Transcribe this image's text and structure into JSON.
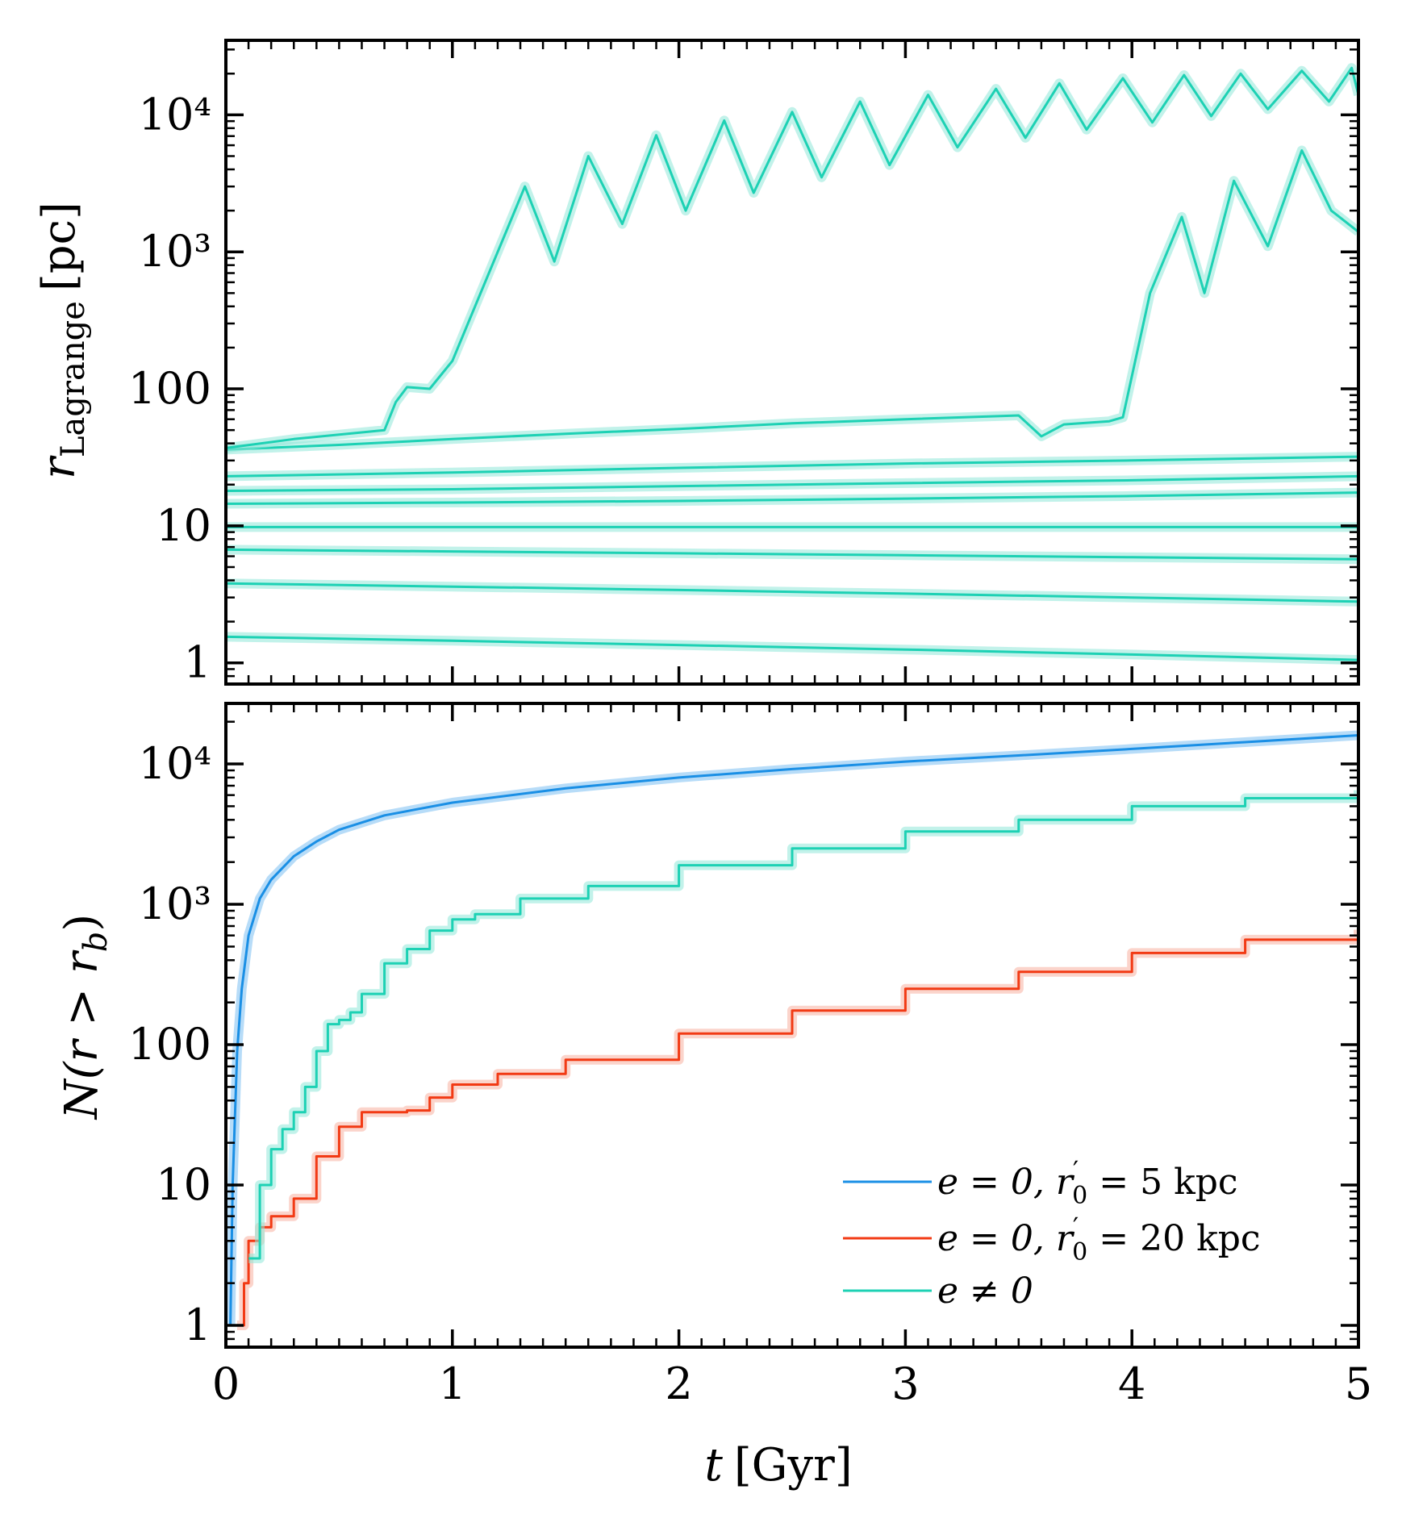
{
  "colors": {
    "cyan": "#1dd1b4",
    "cyan_light": "#8fe8d8",
    "blue": "#1a8fe5",
    "blue_light": "#7cc0f3",
    "red": "#f23a14",
    "red_light": "#f8b0a0"
  },
  "chart_data": [
    {
      "type": "line",
      "panel": "top",
      "xlabel": "",
      "ylabel": "r_Lagrange [pc]",
      "ylabel_main": "r",
      "ylabel_sub": "Lagrange",
      "ylabel_unit": "[pc]",
      "yscale": "log",
      "xlim": [
        0,
        5
      ],
      "ylim": [
        0.7,
        35000
      ],
      "yticks": [
        1,
        10,
        100,
        1000,
        10000
      ],
      "ytick_labels": [
        "1",
        "10",
        "100",
        "10³",
        "10⁴"
      ],
      "grid": false,
      "series": [
        {
          "x": [
            0,
            1,
            2,
            3,
            4,
            5
          ],
          "y": [
            1.55,
            1.45,
            1.35,
            1.25,
            1.15,
            1.05
          ]
        },
        {
          "x": [
            0,
            1,
            2,
            3,
            4,
            5
          ],
          "y": [
            3.8,
            3.6,
            3.4,
            3.2,
            3.0,
            2.8
          ]
        },
        {
          "x": [
            0,
            1,
            2,
            3,
            4,
            5
          ],
          "y": [
            6.7,
            6.5,
            6.3,
            6.1,
            5.9,
            5.7
          ]
        },
        {
          "x": [
            0,
            1,
            2,
            3,
            4,
            5
          ],
          "y": [
            9.8,
            9.8,
            9.8,
            9.8,
            9.8,
            9.8
          ]
        },
        {
          "x": [
            0,
            1,
            2,
            3,
            4,
            5
          ],
          "y": [
            14.5,
            14.8,
            15.2,
            15.8,
            16.5,
            17.5
          ]
        },
        {
          "x": [
            0,
            1,
            2,
            3,
            4,
            5
          ],
          "y": [
            18,
            18.5,
            19.5,
            20.5,
            21.5,
            23
          ]
        },
        {
          "x": [
            0,
            1,
            2,
            3,
            4,
            5
          ],
          "y": [
            23,
            24.5,
            26.5,
            28.5,
            30,
            32
          ]
        },
        {
          "x": [
            0,
            0.5,
            1,
            1.5,
            2,
            2.5,
            3,
            3.5,
            3.6,
            3.7,
            3.9,
            3.96,
            4.08,
            4.22,
            4.32,
            4.45,
            4.6,
            4.75,
            4.88,
            5.0
          ],
          "y": [
            36,
            39,
            43,
            47,
            51,
            56,
            60,
            64,
            45,
            55,
            58,
            62,
            500,
            1800,
            500,
            3300,
            1100,
            5500,
            2000,
            1400
          ]
        },
        {
          "x": [
            0,
            0.3,
            0.7,
            0.75,
            0.8,
            0.9,
            1.0,
            1.1,
            1.32,
            1.45,
            1.6,
            1.75,
            1.9,
            2.03,
            2.2,
            2.33,
            2.5,
            2.63,
            2.8,
            2.93,
            3.1,
            3.23,
            3.4,
            3.53,
            3.68,
            3.8,
            3.96,
            4.09,
            4.23,
            4.35,
            4.48,
            4.6,
            4.75,
            4.87,
            4.97,
            5.0
          ],
          "y": [
            37,
            43,
            50,
            80,
            103,
            100,
            160,
            400,
            3000,
            850,
            5000,
            1600,
            7100,
            2000,
            9100,
            2700,
            10500,
            3500,
            12500,
            4300,
            14000,
            5800,
            15500,
            6800,
            17000,
            7800,
            18500,
            8800,
            19500,
            9800,
            20000,
            11000,
            21000,
            12500,
            22000,
            14000
          ]
        }
      ]
    },
    {
      "type": "line",
      "panel": "bottom",
      "xlabel": "t [Gyr]",
      "xlabel_main": "t",
      "xlabel_unit": "[Gyr]",
      "ylabel": "N(r > r_b)",
      "ylabel_main": "N(r > r",
      "ylabel_sub": "b",
      "ylabel_close": ")",
      "yscale": "log",
      "xlim": [
        0,
        5
      ],
      "ylim": [
        0.7,
        27000
      ],
      "xticks": [
        0,
        1,
        2,
        3,
        4,
        5
      ],
      "xtick_labels": [
        "0",
        "1",
        "2",
        "3",
        "4",
        "5"
      ],
      "yticks": [
        1,
        10,
        100,
        1000,
        10000
      ],
      "ytick_labels": [
        "1",
        "10",
        "100",
        "10³",
        "10⁴"
      ],
      "grid": false,
      "legend_placement": "lower-right",
      "series": [
        {
          "name": "e = 0, r′₀ = 5 kpc",
          "legend_lhs": "e = 0, r",
          "legend_prime": "′",
          "legend_sub": "0",
          "legend_rhs": " = 5 kpc",
          "color_key": "blue",
          "x": [
            0.02,
            0.03,
            0.05,
            0.07,
            0.1,
            0.15,
            0.2,
            0.3,
            0.4,
            0.5,
            0.7,
            1.0,
            1.5,
            2.0,
            2.5,
            3.0,
            3.5,
            4.0,
            4.5,
            5.0
          ],
          "y": [
            1,
            10,
            90,
            250,
            600,
            1100,
            1500,
            2200,
            2800,
            3400,
            4300,
            5300,
            6700,
            8000,
            9200,
            10400,
            11500,
            12800,
            14300,
            16000
          ]
        },
        {
          "name": "e = 0, r′₀ = 20 kpc",
          "legend_lhs": "e = 0, r",
          "legend_prime": "′",
          "legend_sub": "0",
          "legend_rhs": " = 20 kpc",
          "color_key": "red",
          "x": [
            0.05,
            0.08,
            0.1,
            0.15,
            0.2,
            0.25,
            0.3,
            0.4,
            0.5,
            0.6,
            0.8,
            0.9,
            1.0,
            1.2,
            1.5,
            2.0,
            2.5,
            3.0,
            3.5,
            4.0,
            4.5,
            5.0
          ],
          "y": [
            1,
            2,
            4,
            5,
            6,
            6,
            8,
            16,
            26,
            33,
            34,
            42,
            52,
            62,
            78,
            120,
            175,
            250,
            330,
            450,
            560,
            660
          ]
        },
        {
          "name": "e ≠ 0",
          "legend_lhs": "e ≠ 0",
          "color_key": "cyan",
          "x": [
            0.1,
            0.15,
            0.2,
            0.25,
            0.3,
            0.35,
            0.4,
            0.45,
            0.5,
            0.55,
            0.6,
            0.7,
            0.8,
            0.9,
            1.0,
            1.1,
            1.3,
            1.6,
            2.0,
            2.5,
            3.0,
            3.5,
            4.0,
            4.5,
            5.0
          ],
          "y": [
            3,
            10,
            18,
            25,
            33,
            50,
            90,
            140,
            150,
            170,
            230,
            380,
            480,
            650,
            780,
            850,
            1100,
            1350,
            1900,
            2500,
            3300,
            4000,
            5000,
            5700,
            6500
          ]
        }
      ]
    }
  ]
}
